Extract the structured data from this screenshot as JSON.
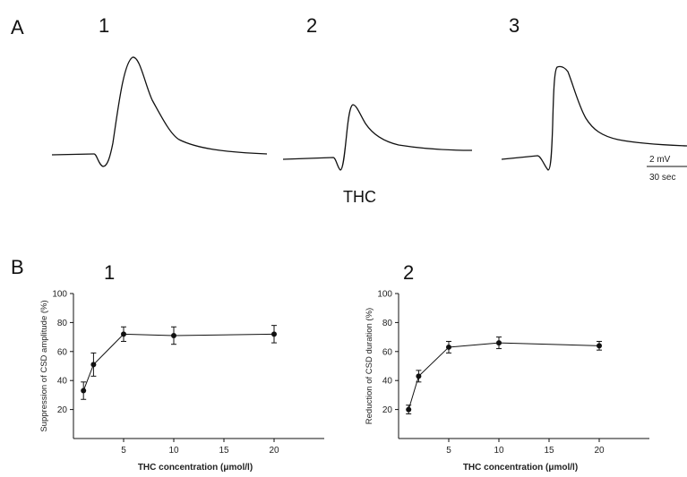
{
  "panel_a": {
    "letter": "A",
    "trace_labels": [
      "1",
      "2",
      "3"
    ],
    "condition_label": "THC",
    "scale_bar": {
      "amplitude": "2 mV",
      "time": "30 sec"
    }
  },
  "panel_b": {
    "letter": "B",
    "sub_labels": [
      "1",
      "2"
    ]
  },
  "chart_data": [
    {
      "type": "line",
      "title": "",
      "panel": "B1",
      "xlabel": "THC concentration (μmol/l)",
      "ylabel": "Suppression of CSD amplitude (%)",
      "x": [
        1,
        2,
        5,
        10,
        20
      ],
      "y": [
        33,
        51,
        72,
        71,
        72
      ],
      "error": [
        6,
        8,
        5,
        6,
        6
      ],
      "xlim": [
        0,
        25
      ],
      "ylim": [
        0,
        100
      ],
      "xticks": [
        5,
        10,
        15,
        20
      ],
      "yticks": [
        20,
        40,
        60,
        80,
        100
      ],
      "grid": false
    },
    {
      "type": "line",
      "title": "",
      "panel": "B2",
      "xlabel": "THC concentration (μmol/l)",
      "ylabel": "Reduction of CSD duration (%)",
      "x": [
        1,
        2,
        5,
        10,
        20
      ],
      "y": [
        20,
        43,
        63,
        66,
        64
      ],
      "error": [
        3,
        4,
        4,
        4,
        3
      ],
      "xlim": [
        0,
        25
      ],
      "ylim": [
        0,
        100
      ],
      "xticks": [
        5,
        10,
        15,
        20
      ],
      "yticks": [
        20,
        40,
        60,
        80,
        100
      ],
      "grid": false
    }
  ]
}
